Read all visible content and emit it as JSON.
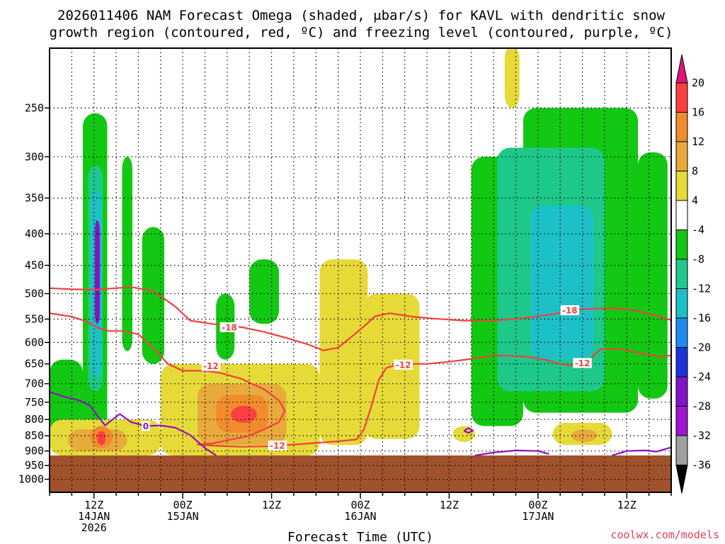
{
  "chart_data": {
    "type": "heatmap",
    "title_lines": [
      "2026011406 NAM Forecast Omega (shaded, μbar/s) for KAVL with dendritic snow",
      "growth region (contoured, red, ºC) and freezing level (contoured, purple, ºC)"
    ],
    "xlabel": "Forecast Time (UTC)",
    "ylabel": "",
    "y_scale": "log-pressure",
    "ylim_hpa": [
      1050,
      200
    ],
    "y_ticks": [
      250,
      300,
      350,
      400,
      450,
      500,
      550,
      600,
      650,
      700,
      750,
      800,
      850,
      900,
      950,
      1000
    ],
    "x_range_hours": [
      6,
      90
    ],
    "x_ticks": [
      {
        "hour": 12,
        "lines": [
          "12Z",
          "14JAN",
          "2026"
        ]
      },
      {
        "hour": 24,
        "lines": [
          "00Z",
          "15JAN"
        ]
      },
      {
        "hour": 36,
        "lines": [
          "12Z"
        ]
      },
      {
        "hour": 48,
        "lines": [
          "00Z",
          "16JAN"
        ]
      },
      {
        "hour": 60,
        "lines": [
          "12Z"
        ]
      },
      {
        "hour": 72,
        "lines": [
          "00Z",
          "17JAN"
        ]
      },
      {
        "hour": 84,
        "lines": [
          "12Z"
        ]
      }
    ],
    "grid": true,
    "ground_top_hpa": 915,
    "colorbar": {
      "labels": [
        "20",
        "16",
        "12",
        "8",
        "4",
        "-4",
        "-8",
        "-12",
        "-16",
        "-20",
        "-24",
        "-28",
        "-32",
        "-36"
      ],
      "bins": [
        {
          "lo": 16,
          "hi": 20,
          "color": "#ff4040"
        },
        {
          "lo": 12,
          "hi": 16,
          "color": "#f08c2c"
        },
        {
          "lo": 8,
          "hi": 12,
          "color": "#e8aa3c"
        },
        {
          "lo": 4,
          "hi": 8,
          "color": "#e6da38"
        },
        {
          "lo": -4,
          "hi": 4,
          "color": "#ffffff"
        },
        {
          "lo": -8,
          "hi": -4,
          "color": "#12c812"
        },
        {
          "lo": -12,
          "hi": -8,
          "color": "#1ec88a"
        },
        {
          "lo": -16,
          "hi": -12,
          "color": "#1ec0c8"
        },
        {
          "lo": -20,
          "hi": -16,
          "color": "#1e8cf0"
        },
        {
          "lo": -24,
          "hi": -20,
          "color": "#1e32dc"
        },
        {
          "lo": -28,
          "hi": -24,
          "color": "#8214c8"
        },
        {
          "lo": -32,
          "hi": -28,
          "color": "#a014d2"
        },
        {
          "lo": -36,
          "hi": -32,
          "color": "#a0a0a0"
        }
      ],
      "top_color": "#e0147a",
      "bottom_color": "#000000"
    },
    "omega_features": [
      {
        "value": -8,
        "color": "#12c812",
        "t0": 6.0,
        "t1": 10.5,
        "p_top": 640,
        "p_bot": 850
      },
      {
        "value": -8,
        "color": "#12c812",
        "t0": 10.5,
        "t1": 13.8,
        "p_top": 255,
        "p_bot": 850
      },
      {
        "value": -12,
        "color": "#1ec88a",
        "t0": 11.2,
        "t1": 13.2,
        "p_top": 310,
        "p_bot": 720
      },
      {
        "value": -16,
        "color": "#1ec0c8",
        "t0": 11.6,
        "t1": 13.0,
        "p_top": 340,
        "p_bot": 680
      },
      {
        "value": -28,
        "color": "#8214c8",
        "t0": 12.1,
        "t1": 12.8,
        "p_top": 380,
        "p_bot": 560
      },
      {
        "value": -8,
        "color": "#12c812",
        "t0": 15.8,
        "t1": 17.2,
        "p_top": 300,
        "p_bot": 620
      },
      {
        "value": -8,
        "color": "#12c812",
        "t0": 18.5,
        "t1": 21.5,
        "p_top": 390,
        "p_bot": 650
      },
      {
        "value": -8,
        "color": "#12c812",
        "t0": 28.5,
        "t1": 31.0,
        "p_top": 500,
        "p_bot": 640
      },
      {
        "value": -8,
        "color": "#12c812",
        "t0": 33.0,
        "t1": 37.0,
        "p_top": 440,
        "p_bot": 560
      },
      {
        "value": -8,
        "color": "#12c812",
        "t0": 63.0,
        "t1": 70.0,
        "p_top": 300,
        "p_bot": 820
      },
      {
        "value": -8,
        "color": "#12c812",
        "t0": 70.0,
        "t1": 85.5,
        "p_top": 250,
        "p_bot": 780
      },
      {
        "value": -8,
        "color": "#12c812",
        "t0": 85.5,
        "t1": 89.5,
        "p_top": 295,
        "p_bot": 740
      },
      {
        "value": -12,
        "color": "#1ec88a",
        "t0": 66.5,
        "t1": 81.0,
        "p_top": 290,
        "p_bot": 720
      },
      {
        "value": -16,
        "color": "#1ec0c8",
        "t0": 71.0,
        "t1": 79.5,
        "p_top": 360,
        "p_bot": 640
      },
      {
        "value": 6,
        "color": "#e6da38",
        "t0": 6.0,
        "t1": 21.0,
        "p_top": 800,
        "p_bot": 915
      },
      {
        "value": 10,
        "color": "#e8aa3c",
        "t0": 8.5,
        "t1": 16.5,
        "p_top": 830,
        "p_bot": 900
      },
      {
        "value": 14,
        "color": "#f08c2c",
        "t0": 11.5,
        "t1": 14.5,
        "p_top": 820,
        "p_bot": 890
      },
      {
        "value": 18,
        "color": "#ff4040",
        "t0": 12.4,
        "t1": 13.6,
        "p_top": 835,
        "p_bot": 880
      },
      {
        "value": 6,
        "color": "#e6da38",
        "t0": 21.0,
        "t1": 42.5,
        "p_top": 650,
        "p_bot": 915
      },
      {
        "value": 10,
        "color": "#e8aa3c",
        "t0": 26.0,
        "t1": 38.0,
        "p_top": 700,
        "p_bot": 880
      },
      {
        "value": 14,
        "color": "#f08c2c",
        "t0": 28.5,
        "t1": 35.5,
        "p_top": 730,
        "p_bot": 840
      },
      {
        "value": 18,
        "color": "#ff4040",
        "t0": 30.5,
        "t1": 34.0,
        "p_top": 760,
        "p_bot": 810
      },
      {
        "value": 6,
        "color": "#e6da38",
        "t0": 42.5,
        "t1": 49.0,
        "p_top": 440,
        "p_bot": 880
      },
      {
        "value": 6,
        "color": "#e6da38",
        "t0": 48.5,
        "t1": 56.0,
        "p_top": 500,
        "p_bot": 860
      },
      {
        "value": 6,
        "color": "#e6da38",
        "t0": 60.5,
        "t1": 63.5,
        "p_top": 820,
        "p_bot": 870
      },
      {
        "value": 6,
        "color": "#e6da38",
        "t0": 67.5,
        "t1": 69.5,
        "p_top": 198,
        "p_bot": 250
      },
      {
        "value": 6,
        "color": "#e6da38",
        "t0": 74.0,
        "t1": 82.0,
        "p_top": 810,
        "p_bot": 880
      },
      {
        "value": 10,
        "color": "#e8aa3c",
        "t0": 76.5,
        "t1": 80.0,
        "p_top": 830,
        "p_bot": 870
      }
    ],
    "contours": [
      {
        "name": "-18",
        "kind": "dgz",
        "color": "#f04040",
        "points": [
          [
            6,
            490
          ],
          [
            9,
            492
          ],
          [
            12,
            493
          ],
          [
            15,
            490
          ],
          [
            17,
            488
          ],
          [
            20,
            495
          ],
          [
            23,
            525
          ],
          [
            25,
            553
          ],
          [
            28,
            560
          ],
          [
            32,
            567
          ],
          [
            35,
            577
          ],
          [
            38,
            590
          ],
          [
            41,
            605
          ],
          [
            43,
            618
          ],
          [
            45,
            612
          ],
          [
            47,
            585
          ],
          [
            48.5,
            565
          ],
          [
            50,
            544
          ],
          [
            52,
            538
          ],
          [
            55,
            545
          ],
          [
            58,
            549
          ],
          [
            62,
            553
          ],
          [
            66,
            553
          ],
          [
            70,
            548
          ],
          [
            74,
            540
          ],
          [
            78,
            530
          ],
          [
            82,
            528
          ],
          [
            85,
            532
          ],
          [
            88,
            543
          ],
          [
            90,
            552
          ]
        ],
        "labels": [
          {
            "hour": 30.3,
            "hpa": 567,
            "text": "-18"
          },
          {
            "hour": 76.3,
            "hpa": 532,
            "text": "-18"
          }
        ]
      },
      {
        "name": "-12",
        "kind": "dgz",
        "color": "#f04040",
        "points": [
          [
            6,
            538
          ],
          [
            9,
            545
          ],
          [
            11,
            555
          ],
          [
            12.5,
            568
          ],
          [
            14,
            575
          ],
          [
            16,
            575
          ],
          [
            18,
            582
          ],
          [
            20,
            612
          ],
          [
            22,
            650
          ],
          [
            24,
            667
          ],
          [
            27,
            667
          ],
          [
            29,
            672
          ],
          [
            32,
            688
          ],
          [
            35,
            715
          ],
          [
            37,
            745
          ],
          [
            37.8,
            775
          ],
          [
            37,
            808
          ],
          [
            35,
            830
          ],
          [
            33,
            850
          ],
          [
            30,
            865
          ],
          [
            28,
            875
          ],
          [
            26,
            878
          ],
          [
            28,
            882
          ],
          [
            32,
            886
          ],
          [
            36,
            884
          ],
          [
            41,
            875
          ],
          [
            45,
            868
          ],
          [
            47.5,
            862
          ],
          [
            48.5,
            830
          ],
          [
            49.5,
            760
          ],
          [
            50.5,
            690
          ],
          [
            51.5,
            660
          ],
          [
            53,
            652
          ],
          [
            55,
            650
          ],
          [
            57,
            650
          ],
          [
            60,
            645
          ],
          [
            63,
            638
          ],
          [
            66,
            630
          ],
          [
            70,
            632
          ],
          [
            73,
            640
          ],
          [
            75,
            650
          ],
          [
            77,
            655
          ],
          [
            78.5,
            652
          ],
          [
            79.5,
            630
          ],
          [
            80.5,
            615
          ],
          [
            83,
            615
          ],
          [
            86,
            625
          ],
          [
            88.5,
            633
          ],
          [
            90,
            630
          ]
        ],
        "labels": [
          {
            "hour": 27.8,
            "hpa": 655,
            "text": "-12"
          },
          {
            "hour": 36.8,
            "hpa": 882,
            "text": "-12"
          },
          {
            "hour": 53.8,
            "hpa": 652,
            "text": "-12"
          },
          {
            "hour": 78.0,
            "hpa": 648,
            "text": "-12"
          }
        ]
      },
      {
        "name": "0",
        "kind": "freezing",
        "color": "#9010c0",
        "points": [
          [
            6,
            722
          ],
          [
            8,
            735
          ],
          [
            10,
            745
          ],
          [
            11.5,
            760
          ],
          [
            12.5,
            790
          ],
          [
            13.5,
            818
          ],
          [
            14.5,
            800
          ],
          [
            15.5,
            784
          ],
          [
            17,
            808
          ],
          [
            19,
            820
          ],
          [
            21,
            818
          ],
          [
            23,
            825
          ],
          [
            25,
            848
          ],
          [
            27,
            890
          ],
          [
            28.5,
            915
          ]
        ],
        "labels": [
          {
            "hour": 19.0,
            "hpa": 820,
            "text": "0"
          }
        ]
      },
      {
        "name": "0-loop",
        "kind": "freezing",
        "color": "#9010c0",
        "points": [
          [
            62.0,
            835
          ],
          [
            62.6,
            826
          ],
          [
            63.2,
            834
          ],
          [
            62.6,
            841
          ],
          [
            62.0,
            835
          ]
        ],
        "labels": []
      },
      {
        "name": "0-east",
        "kind": "freezing",
        "color": "#9010c0",
        "points": [
          [
            63.5,
            915
          ],
          [
            66,
            905
          ],
          [
            69,
            898
          ],
          [
            72,
            900
          ],
          [
            73.5,
            910
          ]
        ],
        "labels": []
      },
      {
        "name": "0-east2",
        "kind": "freezing",
        "color": "#9010c0",
        "points": [
          [
            82,
            915
          ],
          [
            84,
            900
          ],
          [
            86.5,
            898
          ],
          [
            88,
            902
          ],
          [
            90,
            888
          ]
        ],
        "labels": []
      }
    ]
  },
  "xlabel_text": "Forecast Time (UTC)",
  "credit": "coolwx.com/models"
}
